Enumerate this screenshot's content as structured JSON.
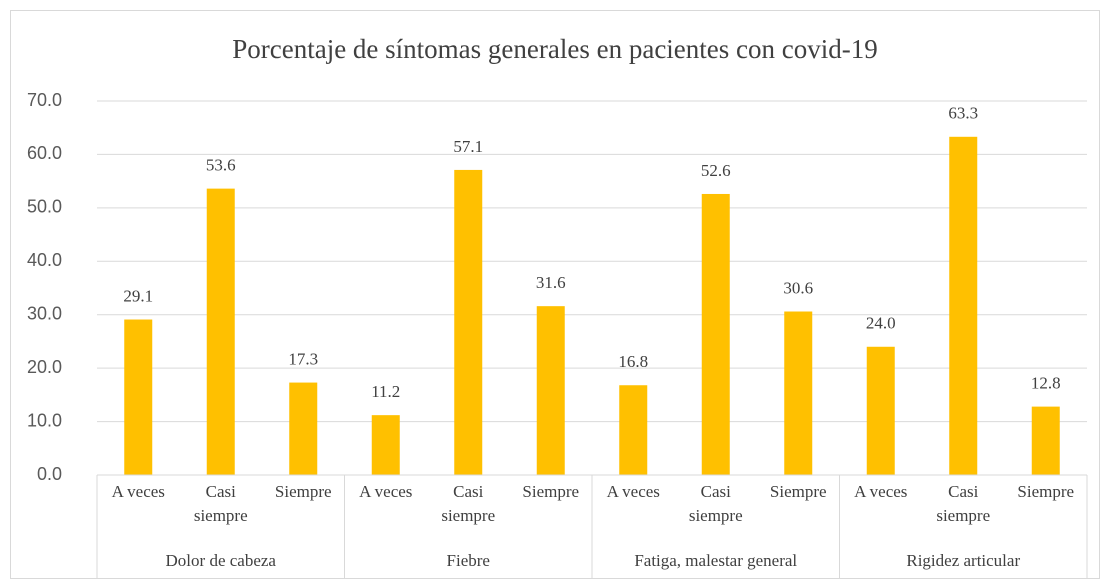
{
  "chart_data": {
    "type": "bar",
    "title": "Porcentaje de síntomas generales en pacientes con covid-19",
    "color": "#ffc000",
    "ylim": [
      0,
      70
    ],
    "yticks": [
      {
        "value": 0,
        "label": "0.0"
      },
      {
        "value": 10,
        "label": "10.0"
      },
      {
        "value": 20,
        "label": "20.0"
      },
      {
        "value": 30,
        "label": "30.0"
      },
      {
        "value": 40,
        "label": "40.0"
      },
      {
        "value": 50,
        "label": "50.0"
      },
      {
        "value": 60,
        "label": "60.0"
      },
      {
        "value": 70,
        "label": "70.0"
      }
    ],
    "grid": true,
    "groups": [
      {
        "name": "Dolor de cabeza",
        "categories": [
          "A veces",
          "Casi siempre",
          "Siempre"
        ],
        "values": [
          29.1,
          53.6,
          17.3
        ],
        "value_labels": [
          "29.1",
          "53.6",
          "17.3"
        ]
      },
      {
        "name": "Fiebre",
        "categories": [
          "A veces",
          "Casi siempre",
          "Siempre"
        ],
        "values": [
          11.2,
          57.1,
          31.6
        ],
        "value_labels": [
          "11.2",
          "57.1",
          "31.6"
        ]
      },
      {
        "name": "Fatiga, malestar general",
        "categories": [
          "A veces",
          "Casi siempre",
          "Siempre"
        ],
        "values": [
          16.8,
          52.6,
          30.6
        ],
        "value_labels": [
          "16.8",
          "52.6",
          "30.6"
        ]
      },
      {
        "name": "Rigidez articular",
        "categories": [
          "A veces",
          "Casi siempre",
          "Siempre"
        ],
        "values": [
          24.0,
          63.3,
          12.8
        ],
        "value_labels": [
          "24.0",
          "63.3",
          "12.8"
        ]
      }
    ]
  }
}
